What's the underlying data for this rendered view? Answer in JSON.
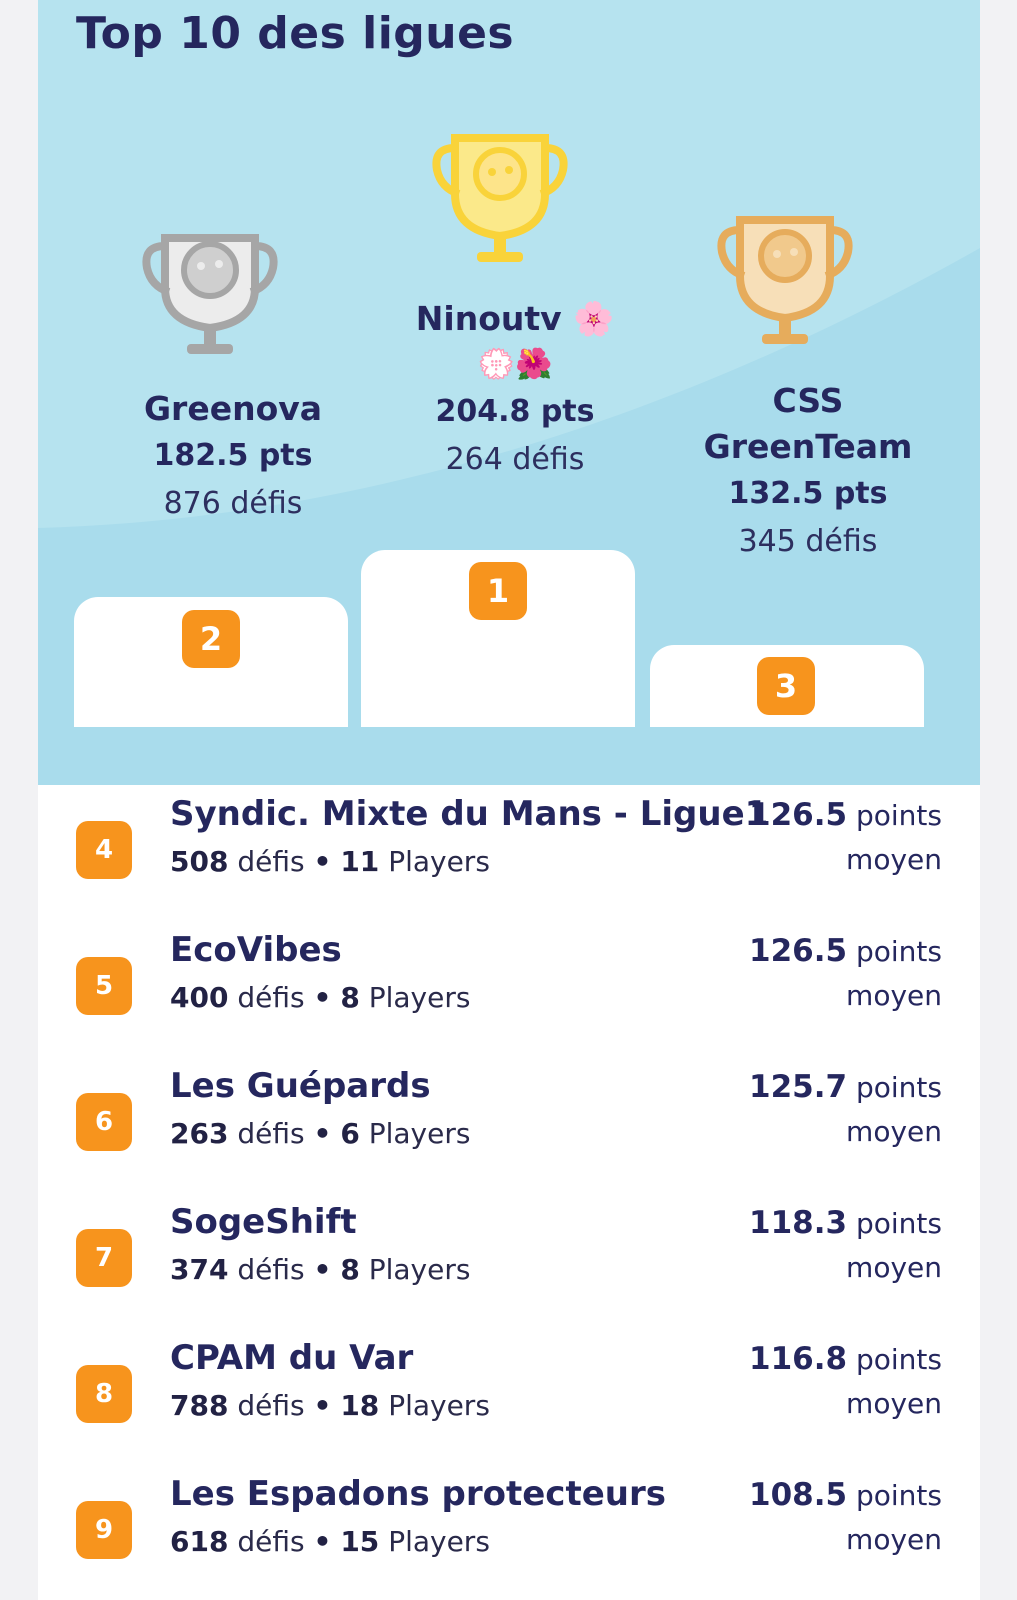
{
  "title": "Top 10 des ligues",
  "podium": [
    {
      "rank": "2",
      "name": "Greenova",
      "pts": "182.5 pts",
      "defis": "876 défis"
    },
    {
      "rank": "1",
      "name": "Ninoutv",
      "name_emoji": "🌸",
      "extra_emoji": "💮🌺",
      "pts": "204.8 pts",
      "defis": "264 défis"
    },
    {
      "rank": "3",
      "name_line1": "CSS",
      "name_line2": "GreenTeam",
      "pts": "132.5 pts",
      "defis": "345 défis"
    }
  ],
  "list": [
    {
      "rank": "4",
      "name": "Syndic. Mixte du Mans - Ligue1",
      "defis": "508",
      "defis_label": "défis",
      "sep": "•",
      "players": "11",
      "players_label": "Players",
      "score": "126.5",
      "score_label": "points",
      "score_sub": "moyen"
    },
    {
      "rank": "5",
      "name": "EcoVibes",
      "defis": "400",
      "defis_label": "défis",
      "sep": "•",
      "players": "8",
      "players_label": "Players",
      "score": "126.5",
      "score_label": "points",
      "score_sub": "moyen"
    },
    {
      "rank": "6",
      "name": "Les Guépards",
      "defis": "263",
      "defis_label": "défis",
      "sep": "•",
      "players": "6",
      "players_label": "Players",
      "score": "125.7",
      "score_label": "points",
      "score_sub": "moyen"
    },
    {
      "rank": "7",
      "name": "SogeShift",
      "defis": "374",
      "defis_label": "défis",
      "sep": "•",
      "players": "8",
      "players_label": "Players",
      "score": "118.3",
      "score_label": "points",
      "score_sub": "moyen"
    },
    {
      "rank": "8",
      "name": "CPAM du Var",
      "defis": "788",
      "defis_label": "défis",
      "sep": "•",
      "players": "18",
      "players_label": "Players",
      "score": "116.8",
      "score_label": "points",
      "score_sub": "moyen"
    },
    {
      "rank": "9",
      "name": "Les Espadons protecteurs",
      "defis": "618",
      "defis_label": "défis",
      "sep": "•",
      "players": "15",
      "players_label": "Players",
      "score": "108.5",
      "score_label": "points",
      "score_sub": "moyen"
    }
  ],
  "colors": {
    "hero_bg": "#b6e3ef",
    "accent": "#f7941d",
    "text_dark": "#25275e",
    "gold": "#f9d33a",
    "silver": "#a6a6a6",
    "bronze": "#e6ac5c"
  },
  "icons": [
    "trophy-silver-icon",
    "trophy-gold-icon",
    "trophy-bronze-icon"
  ]
}
